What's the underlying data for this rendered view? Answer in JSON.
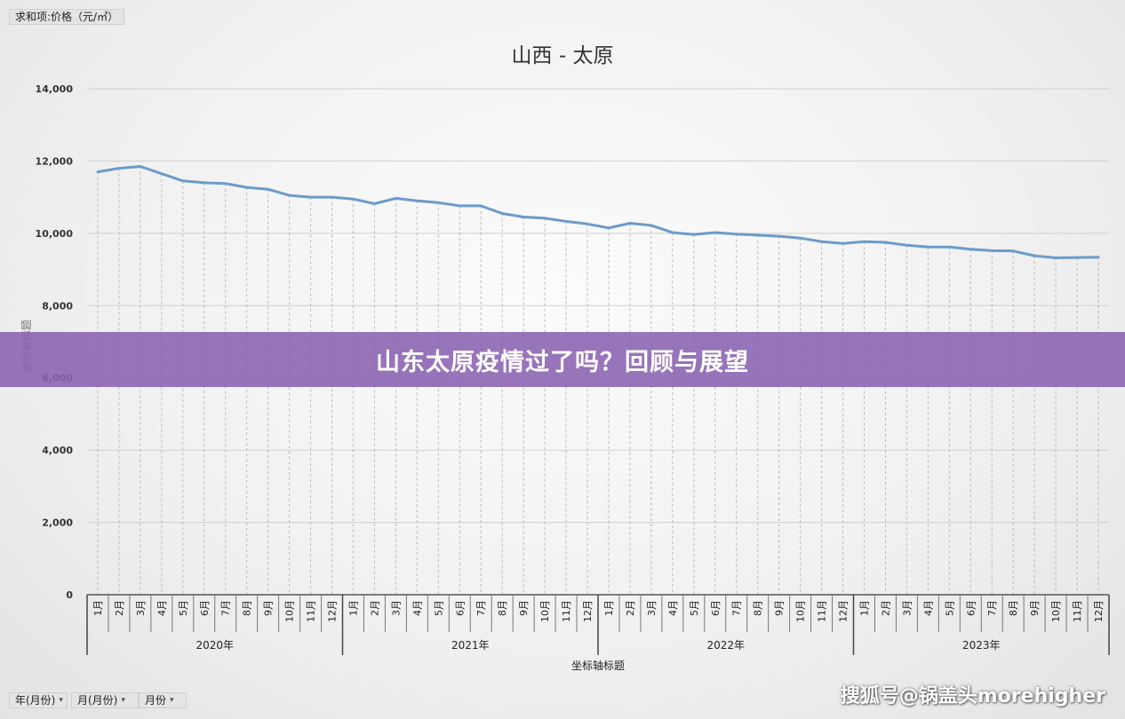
{
  "pivot": {
    "value_field": "求和项:价格（元/㎡）",
    "row_fields": [
      "年(月份)",
      "月(月份)",
      "月份"
    ]
  },
  "banner": {
    "text": "山东太原疫情过了吗？回顾与展望"
  },
  "watermark": {
    "text": "搜狐号@锅盖头morehigher"
  },
  "chart_data": {
    "type": "line",
    "title": "山西 - 太原",
    "ylabel": "坐标轴标题",
    "xlabel": "坐标轴标题",
    "ylim": [
      0,
      14000
    ],
    "yticks": [
      0,
      2000,
      4000,
      6000,
      8000,
      10000,
      12000,
      14000
    ],
    "ytick_labels": [
      "0",
      "2,000",
      "4,000",
      "6,000",
      "8,000",
      "10,000",
      "12,000",
      "14,000"
    ],
    "grid": true,
    "line_color": "#6b9bc9",
    "years": [
      "2020年",
      "2021年",
      "2022年",
      "2023年"
    ],
    "months": [
      "1月",
      "2月",
      "3月",
      "4月",
      "5月",
      "6月",
      "7月",
      "8月",
      "9月",
      "10月",
      "11月",
      "12月"
    ],
    "series": [
      {
        "values": [
          11700,
          11800,
          11850,
          11650,
          11450,
          11400,
          11380,
          11270,
          11220,
          11050,
          11000,
          11000,
          10950,
          10820,
          10970,
          10900,
          10850,
          10760,
          10760,
          10550,
          10450,
          10420,
          10330,
          10260,
          10150,
          10280,
          10220,
          10020,
          9970,
          10020,
          9980,
          9950,
          9920,
          9870,
          9770,
          9720,
          9770,
          9750,
          9670,
          9620,
          9620,
          9560,
          9520,
          9510,
          9380,
          9320,
          9330,
          9340
        ]
      }
    ]
  }
}
